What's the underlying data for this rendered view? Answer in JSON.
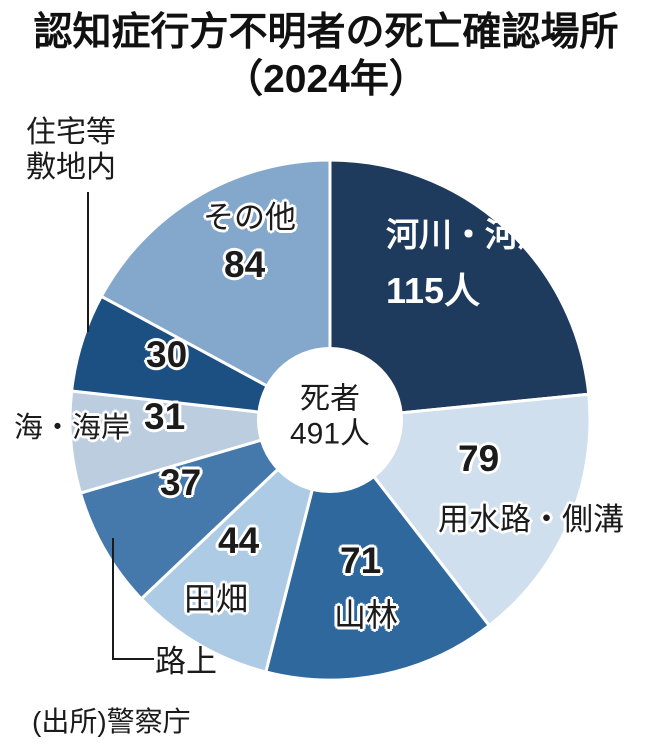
{
  "title": {
    "main": "認知症行方不明者の死亡確認場所",
    "year": "（2024年）"
  },
  "center": {
    "label": "死者",
    "value": "491人"
  },
  "source": "(出所)警察庁",
  "chart_data": {
    "type": "pie",
    "donut": true,
    "title": "認知症行方不明者の死亡確認場所（2024年）",
    "total": 491,
    "total_label": "死者491人",
    "unit": "人",
    "start_angle_deg": 0,
    "direction": "clockwise",
    "legend_position": "none",
    "segments": [
      {
        "id": "riverbed",
        "label": "河川・河川敷",
        "value": 115,
        "display": "115人",
        "color": "#1e3a5c"
      },
      {
        "id": "waterway",
        "label": "用水路・側溝",
        "value": 79,
        "display": "79",
        "color": "#cfdfee"
      },
      {
        "id": "forest",
        "label": "山林",
        "value": 71,
        "display": "71",
        "color": "#2e689c"
      },
      {
        "id": "fields",
        "label": "田畑",
        "value": 44,
        "display": "44",
        "color": "#aecbe5"
      },
      {
        "id": "road",
        "label": "路上",
        "value": 37,
        "display": "37",
        "color": "#4579ac"
      },
      {
        "id": "sea-coast",
        "label": "海・海岸",
        "value": 31,
        "display": "31",
        "color": "#bccde0"
      },
      {
        "id": "residential",
        "label": "住宅等敷地内",
        "value": 30,
        "display": "30",
        "color": "#1c4f82"
      },
      {
        "id": "other",
        "label": "その他",
        "value": 84,
        "display": "84",
        "color": "#84a8cc"
      }
    ]
  }
}
